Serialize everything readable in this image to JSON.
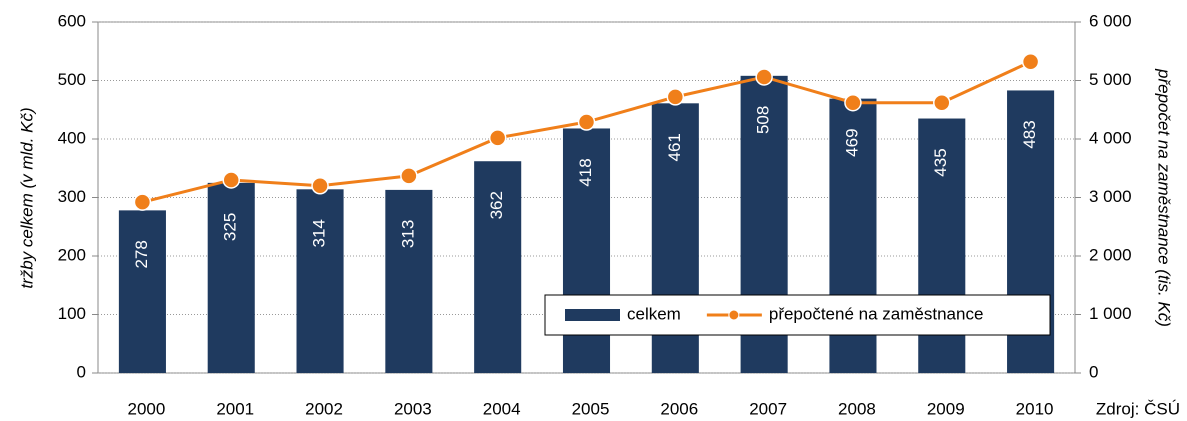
{
  "chart_data": {
    "type": "bar",
    "categories": [
      "2000",
      "2001",
      "2002",
      "2003",
      "2004",
      "2005",
      "2006",
      "2007",
      "2008",
      "2009",
      "2010"
    ],
    "series": [
      {
        "name": "celkem",
        "type": "bar",
        "color": "#1f3a5f",
        "values": [
          278,
          325,
          314,
          313,
          362,
          418,
          461,
          508,
          469,
          435,
          483
        ]
      },
      {
        "name": "přepočtené na zaměstnance",
        "type": "line",
        "axis": "y2",
        "color": "#f07f1a",
        "values": [
          2920,
          3300,
          3200,
          3370,
          4020,
          4290,
          4720,
          5060,
          4620,
          4620,
          5320
        ]
      }
    ],
    "ylabel": "tržby celkem (v mld. Kč)",
    "y2label": "přepočet na zaměstnance (tis. Kč)",
    "ylim": [
      0,
      600
    ],
    "yticks": [
      0,
      100,
      200,
      300,
      400,
      500,
      600
    ],
    "y2lim": [
      0,
      6000
    ],
    "y2ticks": [
      {
        "value": 0,
        "label": "0"
      },
      {
        "value": 1000,
        "label": "1 000"
      },
      {
        "value": 2000,
        "label": "2 000"
      },
      {
        "value": 3000,
        "label": "3 000"
      },
      {
        "value": 4000,
        "label": "4 000"
      },
      {
        "value": 5000,
        "label": "5 000"
      },
      {
        "value": 6000,
        "label": "6 000"
      }
    ],
    "grid": true,
    "legend": "lower right",
    "source": "Zdroj: ČSÚ"
  }
}
